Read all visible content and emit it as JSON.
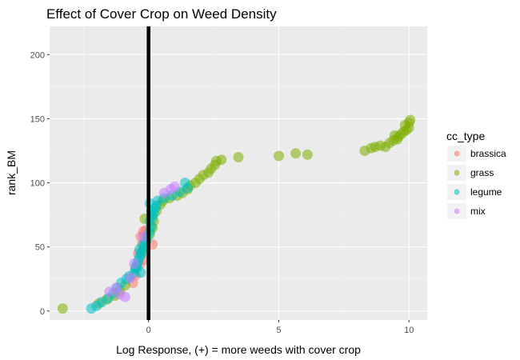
{
  "chart_data": {
    "type": "scatter",
    "title": "Effect of Cover Crop on Weed Density",
    "xlabel": "Log Response, (+) = more weeds with cover crop",
    "ylabel": "rank_BM",
    "xlim": [
      -3.8,
      10.7
    ],
    "ylim": [
      -7,
      222
    ],
    "xticks": [
      0,
      5,
      10
    ],
    "yticks": [
      0,
      50,
      100,
      150,
      200
    ],
    "grid": true,
    "background": "#EBEBEB",
    "reference_line": {
      "x": 0,
      "color": "#000000"
    },
    "legend": {
      "title": "cc_type",
      "position": "right",
      "entries": [
        "brassica",
        "grass",
        "legume",
        "mix"
      ]
    },
    "series": [
      {
        "name": "brassica",
        "color": "#F8766D",
        "points": [
          [
            -0.6,
            22
          ],
          [
            -0.5,
            28
          ],
          [
            -0.35,
            36
          ],
          [
            -0.4,
            45
          ],
          [
            -0.25,
            52
          ],
          [
            -0.3,
            58
          ],
          [
            -0.2,
            62
          ],
          [
            -0.1,
            63
          ],
          [
            0.15,
            52
          ],
          [
            -0.15,
            40
          ]
        ]
      },
      {
        "name": "grass",
        "color": "#7CAE00",
        "points": [
          [
            -3.3,
            2
          ],
          [
            -1.9,
            6
          ],
          [
            -1.6,
            9
          ],
          [
            -1.3,
            12
          ],
          [
            -1.1,
            16
          ],
          [
            -0.9,
            20
          ],
          [
            -0.5,
            34
          ],
          [
            -0.2,
            48
          ],
          [
            -0.1,
            55
          ],
          [
            0.05,
            60
          ],
          [
            0.15,
            65
          ],
          [
            0.2,
            70
          ],
          [
            -0.15,
            72
          ],
          [
            0.1,
            74
          ],
          [
            0.3,
            78
          ],
          [
            0.45,
            83
          ],
          [
            0.55,
            86
          ],
          [
            0.8,
            88
          ],
          [
            1.1,
            90
          ],
          [
            1.3,
            92
          ],
          [
            1.5,
            95
          ],
          [
            1.6,
            98
          ],
          [
            1.8,
            100
          ],
          [
            1.95,
            103
          ],
          [
            2.1,
            106
          ],
          [
            2.3,
            108
          ],
          [
            2.4,
            111
          ],
          [
            2.55,
            114
          ],
          [
            2.6,
            117
          ],
          [
            2.8,
            118
          ],
          [
            3.45,
            120
          ],
          [
            5.0,
            121
          ],
          [
            5.65,
            123
          ],
          [
            6.1,
            122
          ],
          [
            8.3,
            125
          ],
          [
            8.55,
            127
          ],
          [
            8.7,
            128
          ],
          [
            8.9,
            129
          ],
          [
            9.1,
            128
          ],
          [
            9.25,
            131
          ],
          [
            9.4,
            133
          ],
          [
            9.55,
            134
          ],
          [
            9.6,
            136
          ],
          [
            9.7,
            138
          ],
          [
            9.8,
            140
          ],
          [
            9.9,
            141
          ],
          [
            10.0,
            143
          ],
          [
            9.85,
            145
          ],
          [
            10.0,
            147
          ],
          [
            10.05,
            149
          ],
          [
            9.45,
            137
          ]
        ]
      },
      {
        "name": "legume",
        "color": "#00BFC4",
        "points": [
          [
            -2.2,
            2
          ],
          [
            -2.0,
            4
          ],
          [
            -1.8,
            7
          ],
          [
            -1.55,
            10
          ],
          [
            -1.35,
            14
          ],
          [
            -1.2,
            18
          ],
          [
            -1.05,
            22
          ],
          [
            -0.85,
            25
          ],
          [
            -0.75,
            27
          ],
          [
            -0.55,
            30
          ],
          [
            -0.5,
            33
          ],
          [
            -0.45,
            36
          ],
          [
            -0.4,
            39
          ],
          [
            -0.35,
            42
          ],
          [
            -0.3,
            44
          ],
          [
            -0.25,
            46
          ],
          [
            -0.35,
            48
          ],
          [
            -0.15,
            50
          ],
          [
            -0.2,
            52
          ],
          [
            -0.1,
            54
          ],
          [
            -0.05,
            58
          ],
          [
            0.05,
            62
          ],
          [
            0.1,
            66
          ],
          [
            0.05,
            70
          ],
          [
            0.15,
            73
          ],
          [
            0.2,
            76
          ],
          [
            0.1,
            78
          ],
          [
            0.25,
            80
          ],
          [
            0.3,
            82
          ],
          [
            0.05,
            84
          ],
          [
            0.35,
            86
          ],
          [
            0.6,
            88
          ],
          [
            0.9,
            90
          ],
          [
            1.2,
            93
          ],
          [
            1.5,
            96
          ],
          [
            1.4,
            100
          ],
          [
            -0.45,
            34
          ],
          [
            -0.3,
            30
          ]
        ]
      },
      {
        "name": "mix",
        "color": "#C77CFF",
        "points": [
          [
            -1.5,
            15
          ],
          [
            -1.1,
            13
          ],
          [
            -0.9,
            11
          ],
          [
            -0.7,
            26
          ],
          [
            -0.55,
            37
          ],
          [
            -0.2,
            58
          ],
          [
            0.6,
            92
          ],
          [
            0.85,
            95
          ],
          [
            1.0,
            97
          ],
          [
            -1.25,
            18
          ]
        ]
      }
    ]
  }
}
